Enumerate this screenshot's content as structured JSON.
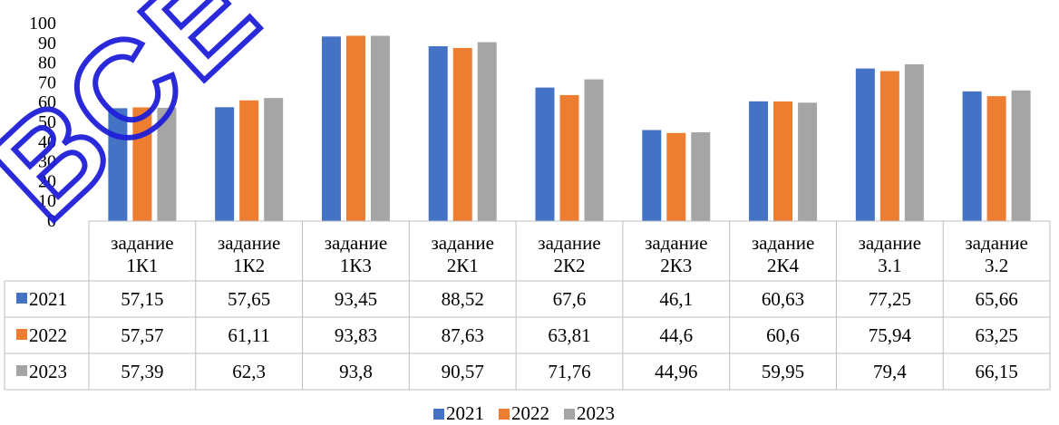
{
  "chart_data": {
    "type": "bar",
    "title": "",
    "xlabel": "",
    "ylabel": "",
    "ylim": [
      0,
      100
    ],
    "yticks": [
      "0",
      "10",
      "20",
      "30",
      "40",
      "50",
      "60",
      "70",
      "80",
      "90",
      "100"
    ],
    "categories": [
      [
        "задание",
        "1К1"
      ],
      [
        "задание",
        "1К2"
      ],
      [
        "задание",
        "1К3"
      ],
      [
        "задание",
        "2К1"
      ],
      [
        "задание",
        "2К2"
      ],
      [
        "задание",
        "2К3"
      ],
      [
        "задание",
        "2К4"
      ],
      [
        "задание",
        "3.1"
      ],
      [
        "задание",
        "3.2"
      ]
    ],
    "series": [
      {
        "name": "2021",
        "color": "#4472C4",
        "values": [
          57.15,
          57.65,
          93.45,
          88.52,
          67.6,
          46.1,
          60.63,
          77.25,
          65.66
        ],
        "labels": [
          "57,15",
          "57,65",
          "93,45",
          "88,52",
          "67,6",
          "46,1",
          "60,63",
          "77,25",
          "65,66"
        ]
      },
      {
        "name": "2022",
        "color": "#ED7D31",
        "values": [
          57.57,
          61.11,
          93.83,
          87.63,
          63.81,
          44.6,
          60.6,
          75.94,
          63.25
        ],
        "labels": [
          "57,57",
          "61,11",
          "93,83",
          "87,63",
          "63,81",
          "44,6",
          "60,6",
          "75,94",
          "63,25"
        ]
      },
      {
        "name": "2023",
        "color": "#A5A5A5",
        "values": [
          57.39,
          62.3,
          93.8,
          90.57,
          71.76,
          44.96,
          59.95,
          79.4,
          66.15
        ],
        "labels": [
          "57,39",
          "62,3",
          "93,8",
          "90,57",
          "71,76",
          "44,96",
          "59,95",
          "79,4",
          "66,15"
        ]
      }
    ],
    "data_table": true,
    "legend": "bottom",
    "grid": false
  },
  "watermark": {
    "text": "ВСЕ ГДЗ",
    "color": "#1f1fd8"
  }
}
